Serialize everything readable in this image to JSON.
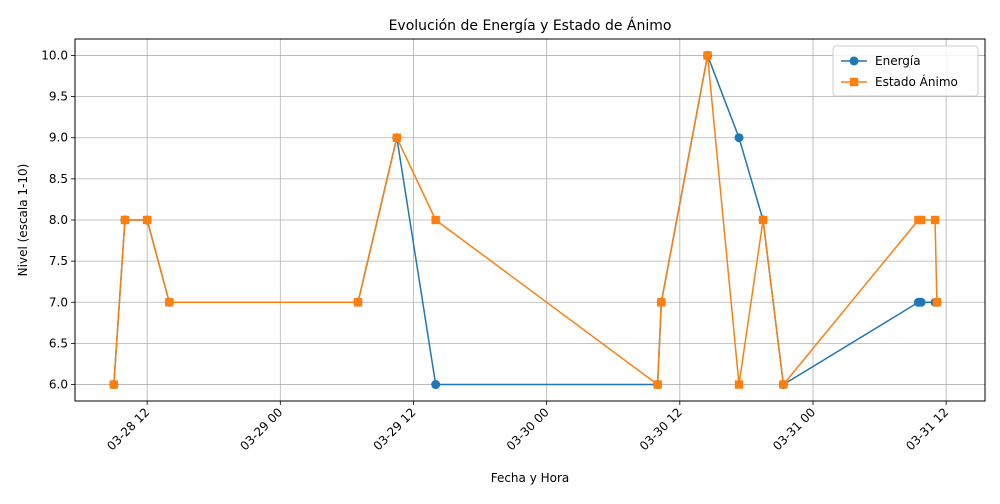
{
  "chart_data": {
    "type": "line",
    "title": "Evolución de Energía y Estado de Ánimo",
    "xlabel": "Fecha y Hora",
    "ylabel": "Nivel (escala 1-10)",
    "xlim": [
      "2025-03-28T05:30",
      "2025-03-31T15:30"
    ],
    "ylim": [
      5.8,
      10.2
    ],
    "x_ticks": [
      "03-28 12",
      "03-29 00",
      "03-29 12",
      "03-30 00",
      "03-30 12",
      "03-31 00",
      "03-31 12"
    ],
    "y_ticks": [
      "6.0",
      "6.5",
      "7.0",
      "7.5",
      "8.0",
      "8.5",
      "9.0",
      "9.5",
      "10.0"
    ],
    "grid": true,
    "legend": "top-right",
    "x": [
      "2025-03-28T09:00",
      "2025-03-28T10:00",
      "2025-03-28T12:00",
      "2025-03-28T14:00",
      "2025-03-29T07:00",
      "2025-03-29T10:30",
      "2025-03-29T14:00",
      "2025-03-30T10:00",
      "2025-03-30T10:20",
      "2025-03-30T14:30",
      "2025-03-30T17:20",
      "2025-03-30T19:30",
      "2025-03-30T21:20",
      "2025-03-31T09:30",
      "2025-03-31T09:45",
      "2025-03-31T11:00",
      "2025-03-31T11:10"
    ],
    "series": [
      {
        "name": "Energía",
        "color": "#1f77b4",
        "marker": "circle",
        "values": [
          6,
          8,
          8,
          7,
          7,
          9,
          6,
          6,
          7,
          10,
          9,
          8,
          6,
          7,
          7,
          7,
          7
        ]
      },
      {
        "name": "Estado Ánimo",
        "color": "#ff7f0e",
        "marker": "square",
        "values": [
          6,
          8,
          8,
          7,
          7,
          9,
          8,
          6,
          7,
          10,
          6,
          8,
          6,
          8,
          8,
          8,
          7
        ]
      }
    ]
  }
}
